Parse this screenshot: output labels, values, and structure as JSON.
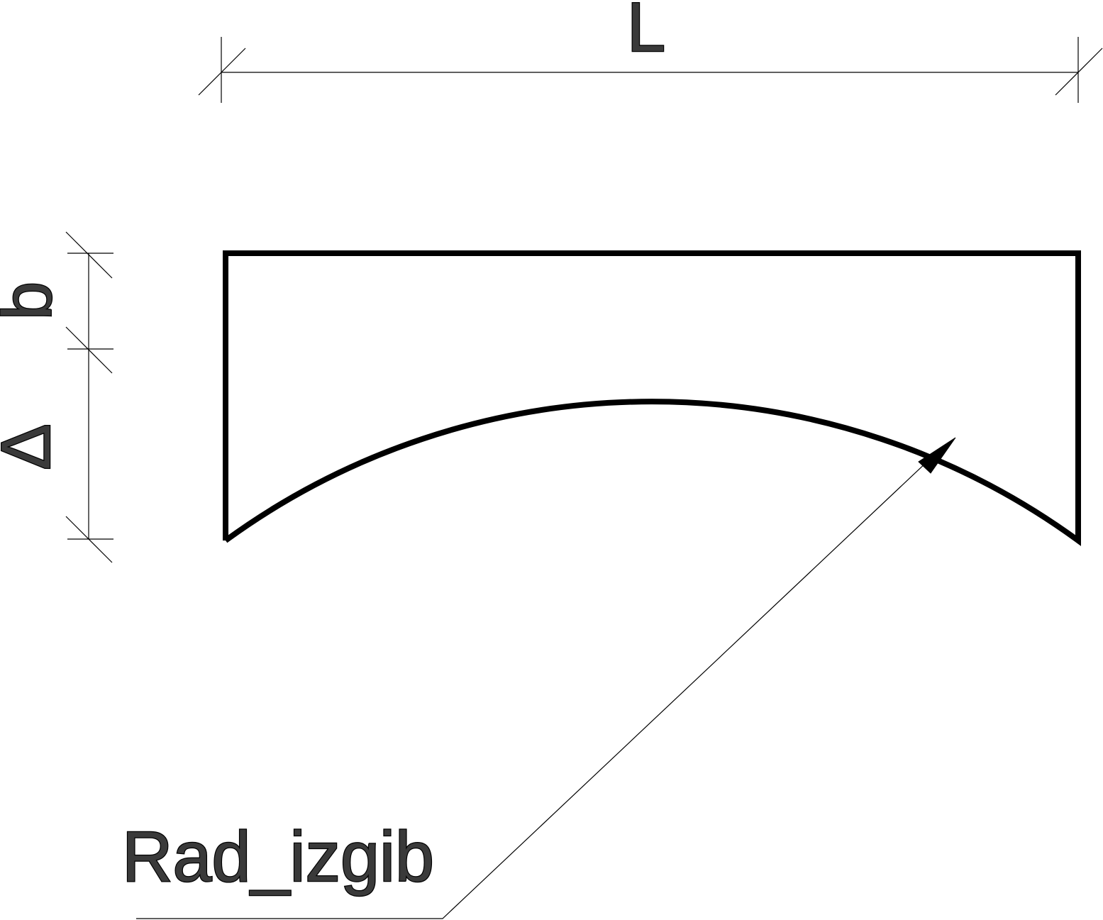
{
  "dimensions": {
    "length_label": "L",
    "height_label": "b",
    "deflection_label": "Δ"
  },
  "leader": {
    "label": "Rad_izgib"
  },
  "colors": {
    "line": "#000000",
    "text_fill": "#3a3a3a",
    "background": "#ffffff"
  }
}
